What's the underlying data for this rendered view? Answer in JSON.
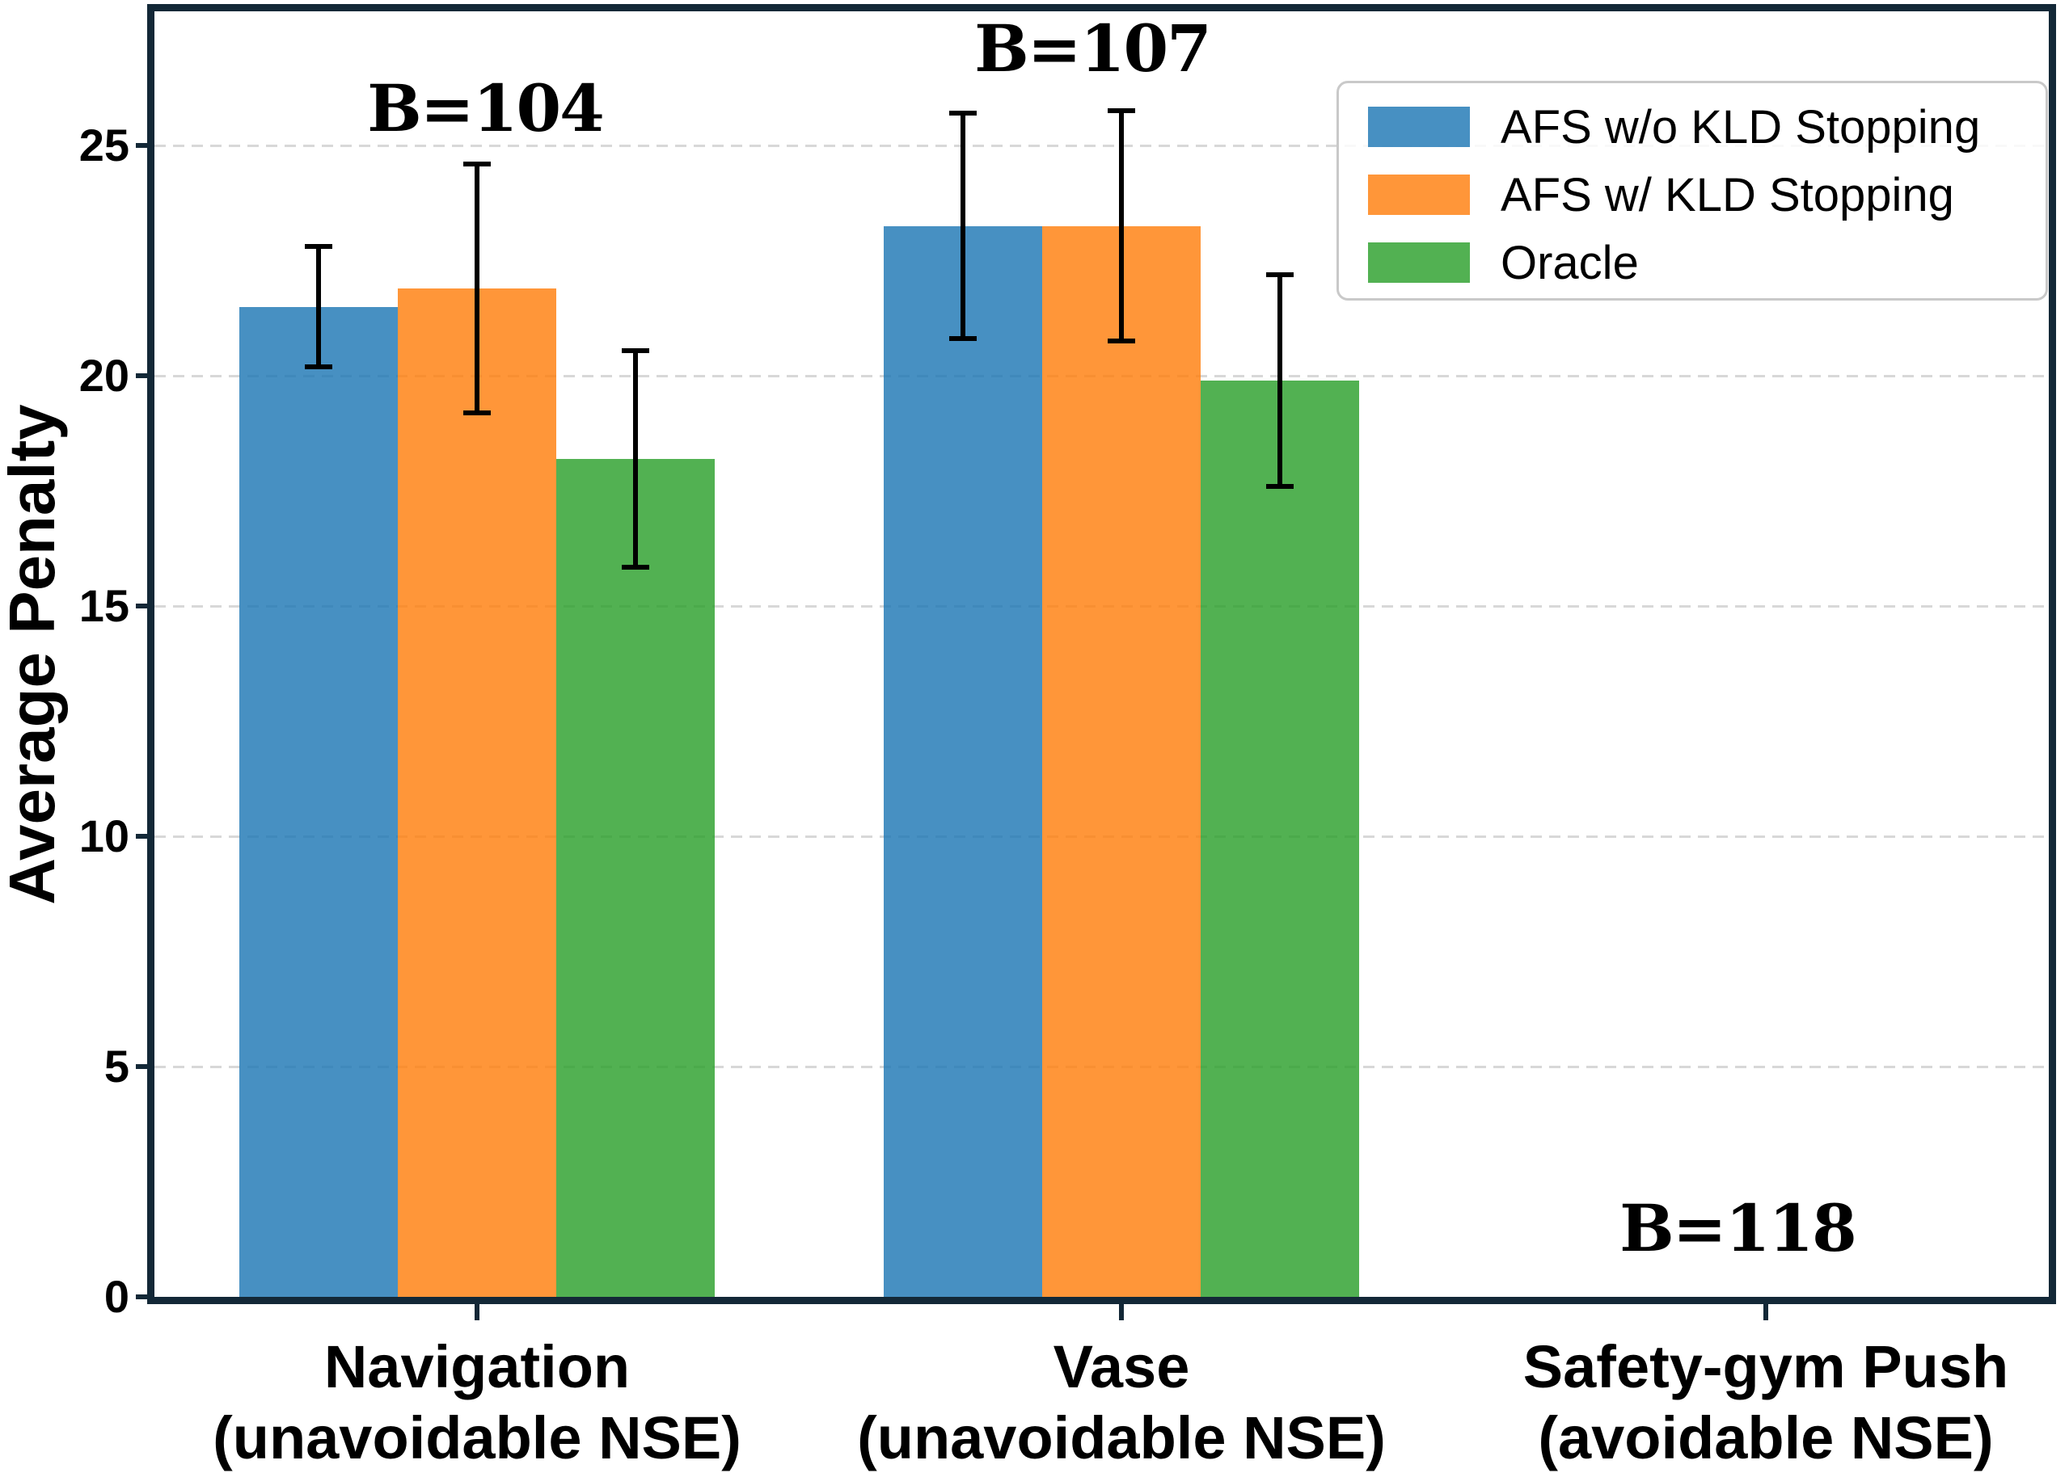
{
  "chart_data": {
    "type": "bar",
    "title": "",
    "ylabel": "Average Penalty",
    "xlabel": "",
    "ylim": [
      0,
      27.9
    ],
    "yticks": [
      0,
      5,
      10,
      15,
      20,
      25
    ],
    "grid": "horizontal-dashed",
    "legend_position": "upper-right",
    "categories": [
      {
        "label_line1": "Navigation",
        "label_line2": "(unavoidable NSE)"
      },
      {
        "label_line1": "Vase",
        "label_line2": "(unavoidable NSE)"
      },
      {
        "label_line1": "Safety-gym Push",
        "label_line2": "(avoidable NSE)"
      }
    ],
    "series": [
      {
        "name": "AFS w/o KLD Stopping",
        "color": "#1f77b4",
        "values": [
          21.5,
          23.25,
          0
        ],
        "errors": [
          1.3,
          2.45,
          null
        ]
      },
      {
        "name": "AFS w/ KLD Stopping",
        "color": "#ff7f0e",
        "values": [
          21.9,
          23.25,
          0
        ],
        "errors": [
          2.7,
          2.5,
          null
        ]
      },
      {
        "name": "Oracle",
        "color": "#2ca02c",
        "values": [
          18.2,
          19.9,
          0
        ],
        "errors": [
          2.35,
          2.3,
          null
        ]
      }
    ],
    "annotations": [
      {
        "text": "B=104",
        "category_index": 0,
        "y_value": 25.8,
        "dx": 10
      },
      {
        "text": "B=107",
        "category_index": 1,
        "y_value": 27.1,
        "dx": -36
      },
      {
        "text": "B=118",
        "category_index": 2,
        "y_value": 1.5,
        "dx": -35
      }
    ]
  },
  "legend": {
    "items": [
      {
        "label": "AFS w/o KLD Stopping",
        "color": "#1f77b4"
      },
      {
        "label": "AFS w/ KLD Stopping",
        "color": "#ff7f0e"
      },
      {
        "label": "Oracle",
        "color": "#2ca02c"
      }
    ]
  },
  "style": {
    "frame_color": "#132837",
    "grid_color": "#d8d8d8",
    "error_color": "#000000",
    "bar_opacity": 0.82,
    "background": "#ffffff",
    "legend_border": "#c9c9c9"
  }
}
